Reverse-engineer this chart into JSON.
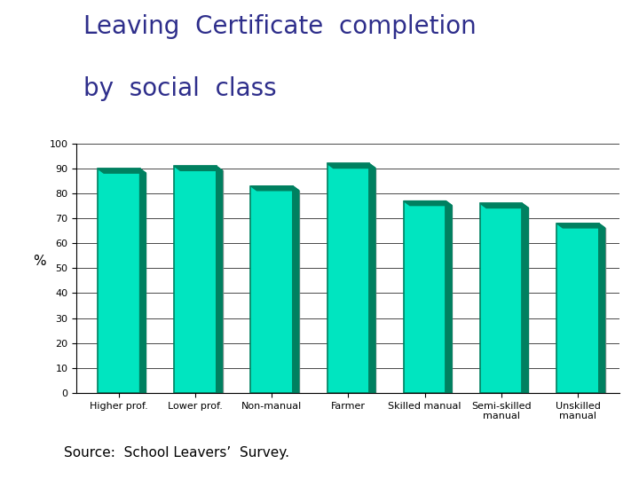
{
  "title_line1": "Leaving  Certificate  completion",
  "title_line2": "by  social  class",
  "title_color": "#2E2E8B",
  "title_fontsize": 20,
  "categories": [
    "Higher prof.",
    "Lower prof.",
    "Non-manual",
    "Farmer",
    "Skilled manual",
    "Semi-skilled\nmanual",
    "Unskilled\nmanual"
  ],
  "values": [
    90,
    91,
    83,
    92,
    77,
    76,
    68
  ],
  "bar_face_color": "#00E5C0",
  "bar_edge_color": "#008060",
  "bar_shadow_color": "#909090",
  "ylabel": "%",
  "ylim": [
    0,
    100
  ],
  "yticks": [
    0,
    10,
    20,
    30,
    40,
    50,
    60,
    70,
    80,
    90,
    100
  ],
  "grid_color": "#000000",
  "background_color": "#ffffff",
  "source_text": "Source:  School Leavers’  Survey.",
  "source_fontsize": 11,
  "ylabel_fontsize": 11,
  "tick_fontsize": 8,
  "bar_width": 0.55
}
